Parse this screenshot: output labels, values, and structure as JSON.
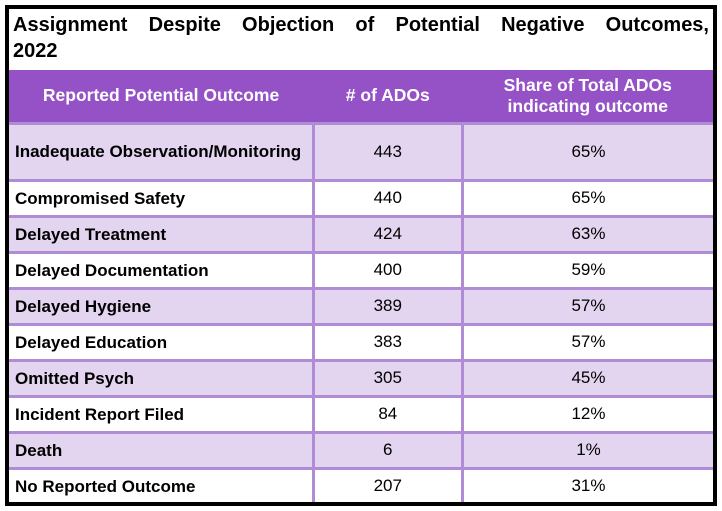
{
  "colors": {
    "header_bg": "#9452C6",
    "header_text": "#FFFFFF",
    "row_alt_bg": "#E3D5EF",
    "row_bg": "#FFFFFF",
    "cell_border": "#B18CD6",
    "outer_border": "#000000",
    "title_text": "#000000"
  },
  "chart_data": {
    "type": "table",
    "title": "Assignment Despite Objection of Potential Negative Outcomes, 2022",
    "title_line1": "Assignment Despite Objection of Potential Negative Outcomes,",
    "title_line2": "2022",
    "columns": [
      "Reported Potential Outcome",
      "# of ADOs",
      "Share of Total ADOs indicating outcome"
    ],
    "rows": [
      {
        "outcome": "Inadequate Observation/Monitoring",
        "ados": 443,
        "share": "65%"
      },
      {
        "outcome": "Compromised Safety",
        "ados": 440,
        "share": "65%"
      },
      {
        "outcome": "Delayed Treatment",
        "ados": 424,
        "share": "63%"
      },
      {
        "outcome": "Delayed Documentation",
        "ados": 400,
        "share": "59%"
      },
      {
        "outcome": "Delayed Hygiene",
        "ados": 389,
        "share": "57%"
      },
      {
        "outcome": "Delayed Education",
        "ados": 383,
        "share": "57%"
      },
      {
        "outcome": "Omitted Psych",
        "ados": 305,
        "share": "45%"
      },
      {
        "outcome": "Incident Report Filed",
        "ados": 84,
        "share": "12%"
      },
      {
        "outcome": "Death",
        "ados": 6,
        "share": "1%"
      },
      {
        "outcome": "No Reported Outcome",
        "ados": 207,
        "share": "31%"
      }
    ]
  }
}
